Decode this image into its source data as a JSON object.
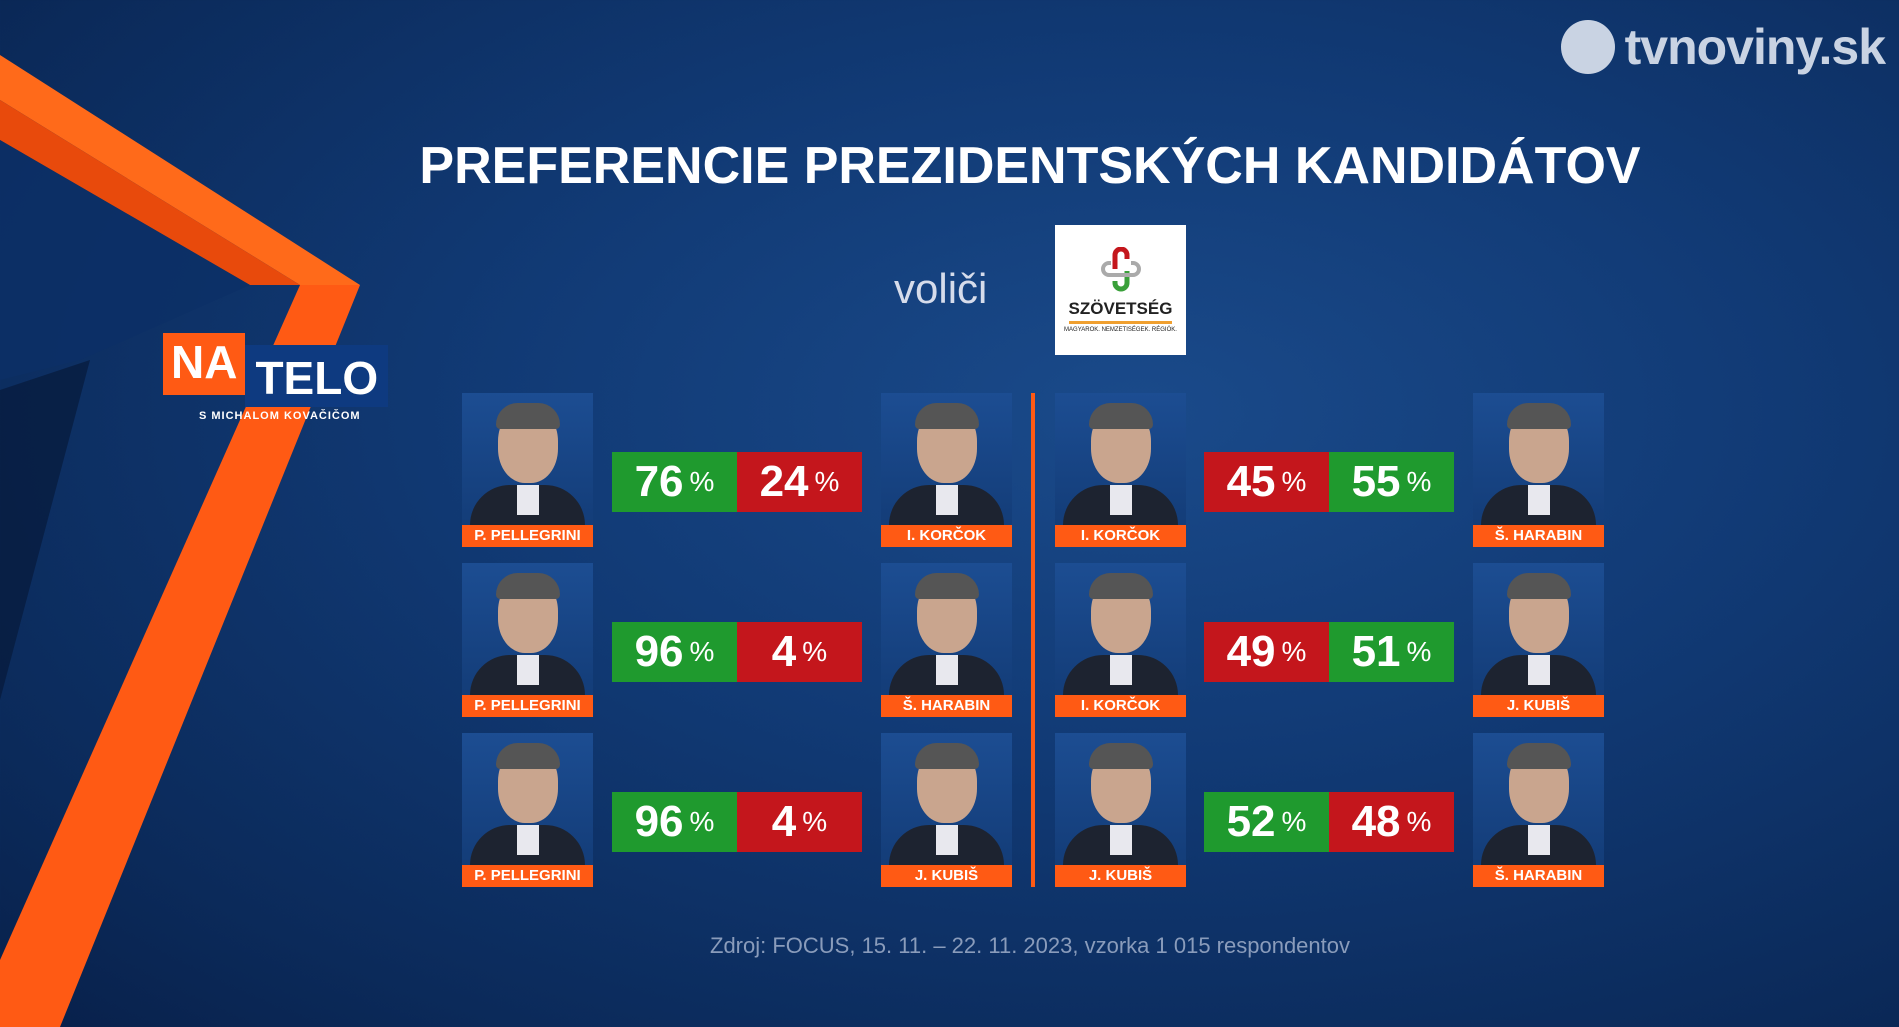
{
  "brand": "tvnoviny.sk",
  "show": {
    "na": "NA",
    "telo": "TELO",
    "subtitle": "S MICHALOM KOVAČIČOM"
  },
  "title": "PREFERENCIE PREZIDENTSKÝCH KANDIDÁTOV",
  "voters_label": "voliči",
  "party_logo": {
    "name": "SZÖVETSÉG",
    "tagline": "MAGYAROK. NEMZETISÉGEK. RÉGIÓK."
  },
  "percent_sign": "%",
  "matchups": [
    {
      "a": "P. PELLEGRINI",
      "a_pct": 76,
      "b": "I. KORČOK",
      "b_pct": 24
    },
    {
      "a": "P. PELLEGRINI",
      "a_pct": 96,
      "b": "Š. HARABIN",
      "b_pct": 4
    },
    {
      "a": "P. PELLEGRINI",
      "a_pct": 96,
      "b": "J. KUBIŠ",
      "b_pct": 4
    },
    {
      "a": "I. KORČOK",
      "a_pct": 45,
      "b": "Š. HARABIN",
      "b_pct": 55
    },
    {
      "a": "I. KORČOK",
      "a_pct": 49,
      "b": "J. KUBIŠ",
      "b_pct": 51
    },
    {
      "a": "J. KUBIŠ",
      "a_pct": 52,
      "b": "Š. HARABIN",
      "b_pct": 48
    }
  ],
  "colors": {
    "win": "#1f9a2e",
    "lose": "#c4161c",
    "accent": "#ff5a14"
  },
  "source": "Zdroj: FOCUS, 15. 11. – 22. 11. 2023, vzorka 1 015 respondentov"
}
